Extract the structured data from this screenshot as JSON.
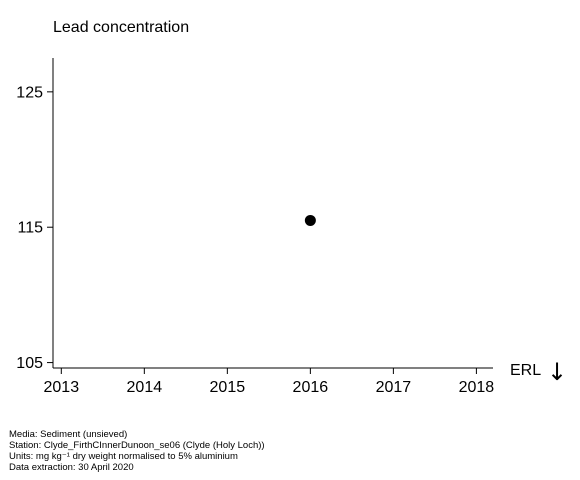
{
  "chart_data": {
    "type": "scatter",
    "title": "Lead concentration",
    "xlabel": "",
    "ylabel": "",
    "x_ticks": [
      "2013",
      "2014",
      "2015",
      "2016",
      "2017",
      "2018"
    ],
    "y_ticks": [
      105,
      115,
      125
    ],
    "xlim": [
      2012.9,
      2018.2
    ],
    "ylim": [
      104.6,
      127.5
    ],
    "series": [
      {
        "points": [
          {
            "x": 2016,
            "y": 115.5
          }
        ]
      }
    ],
    "annotations": {
      "erl_label": "ERL",
      "erl_arrow": "↓"
    },
    "grid": false,
    "legend": "none"
  },
  "footer": {
    "media": "Media: Sediment (unsieved)",
    "station": "Station: Clyde_FirthCInnerDunoon_se06 (Clyde (Holy Loch))",
    "units": "Units:  mg kg⁻¹ dry weight normalised to 5% aluminium",
    "extraction": "Data extraction: 30 April 2020"
  }
}
